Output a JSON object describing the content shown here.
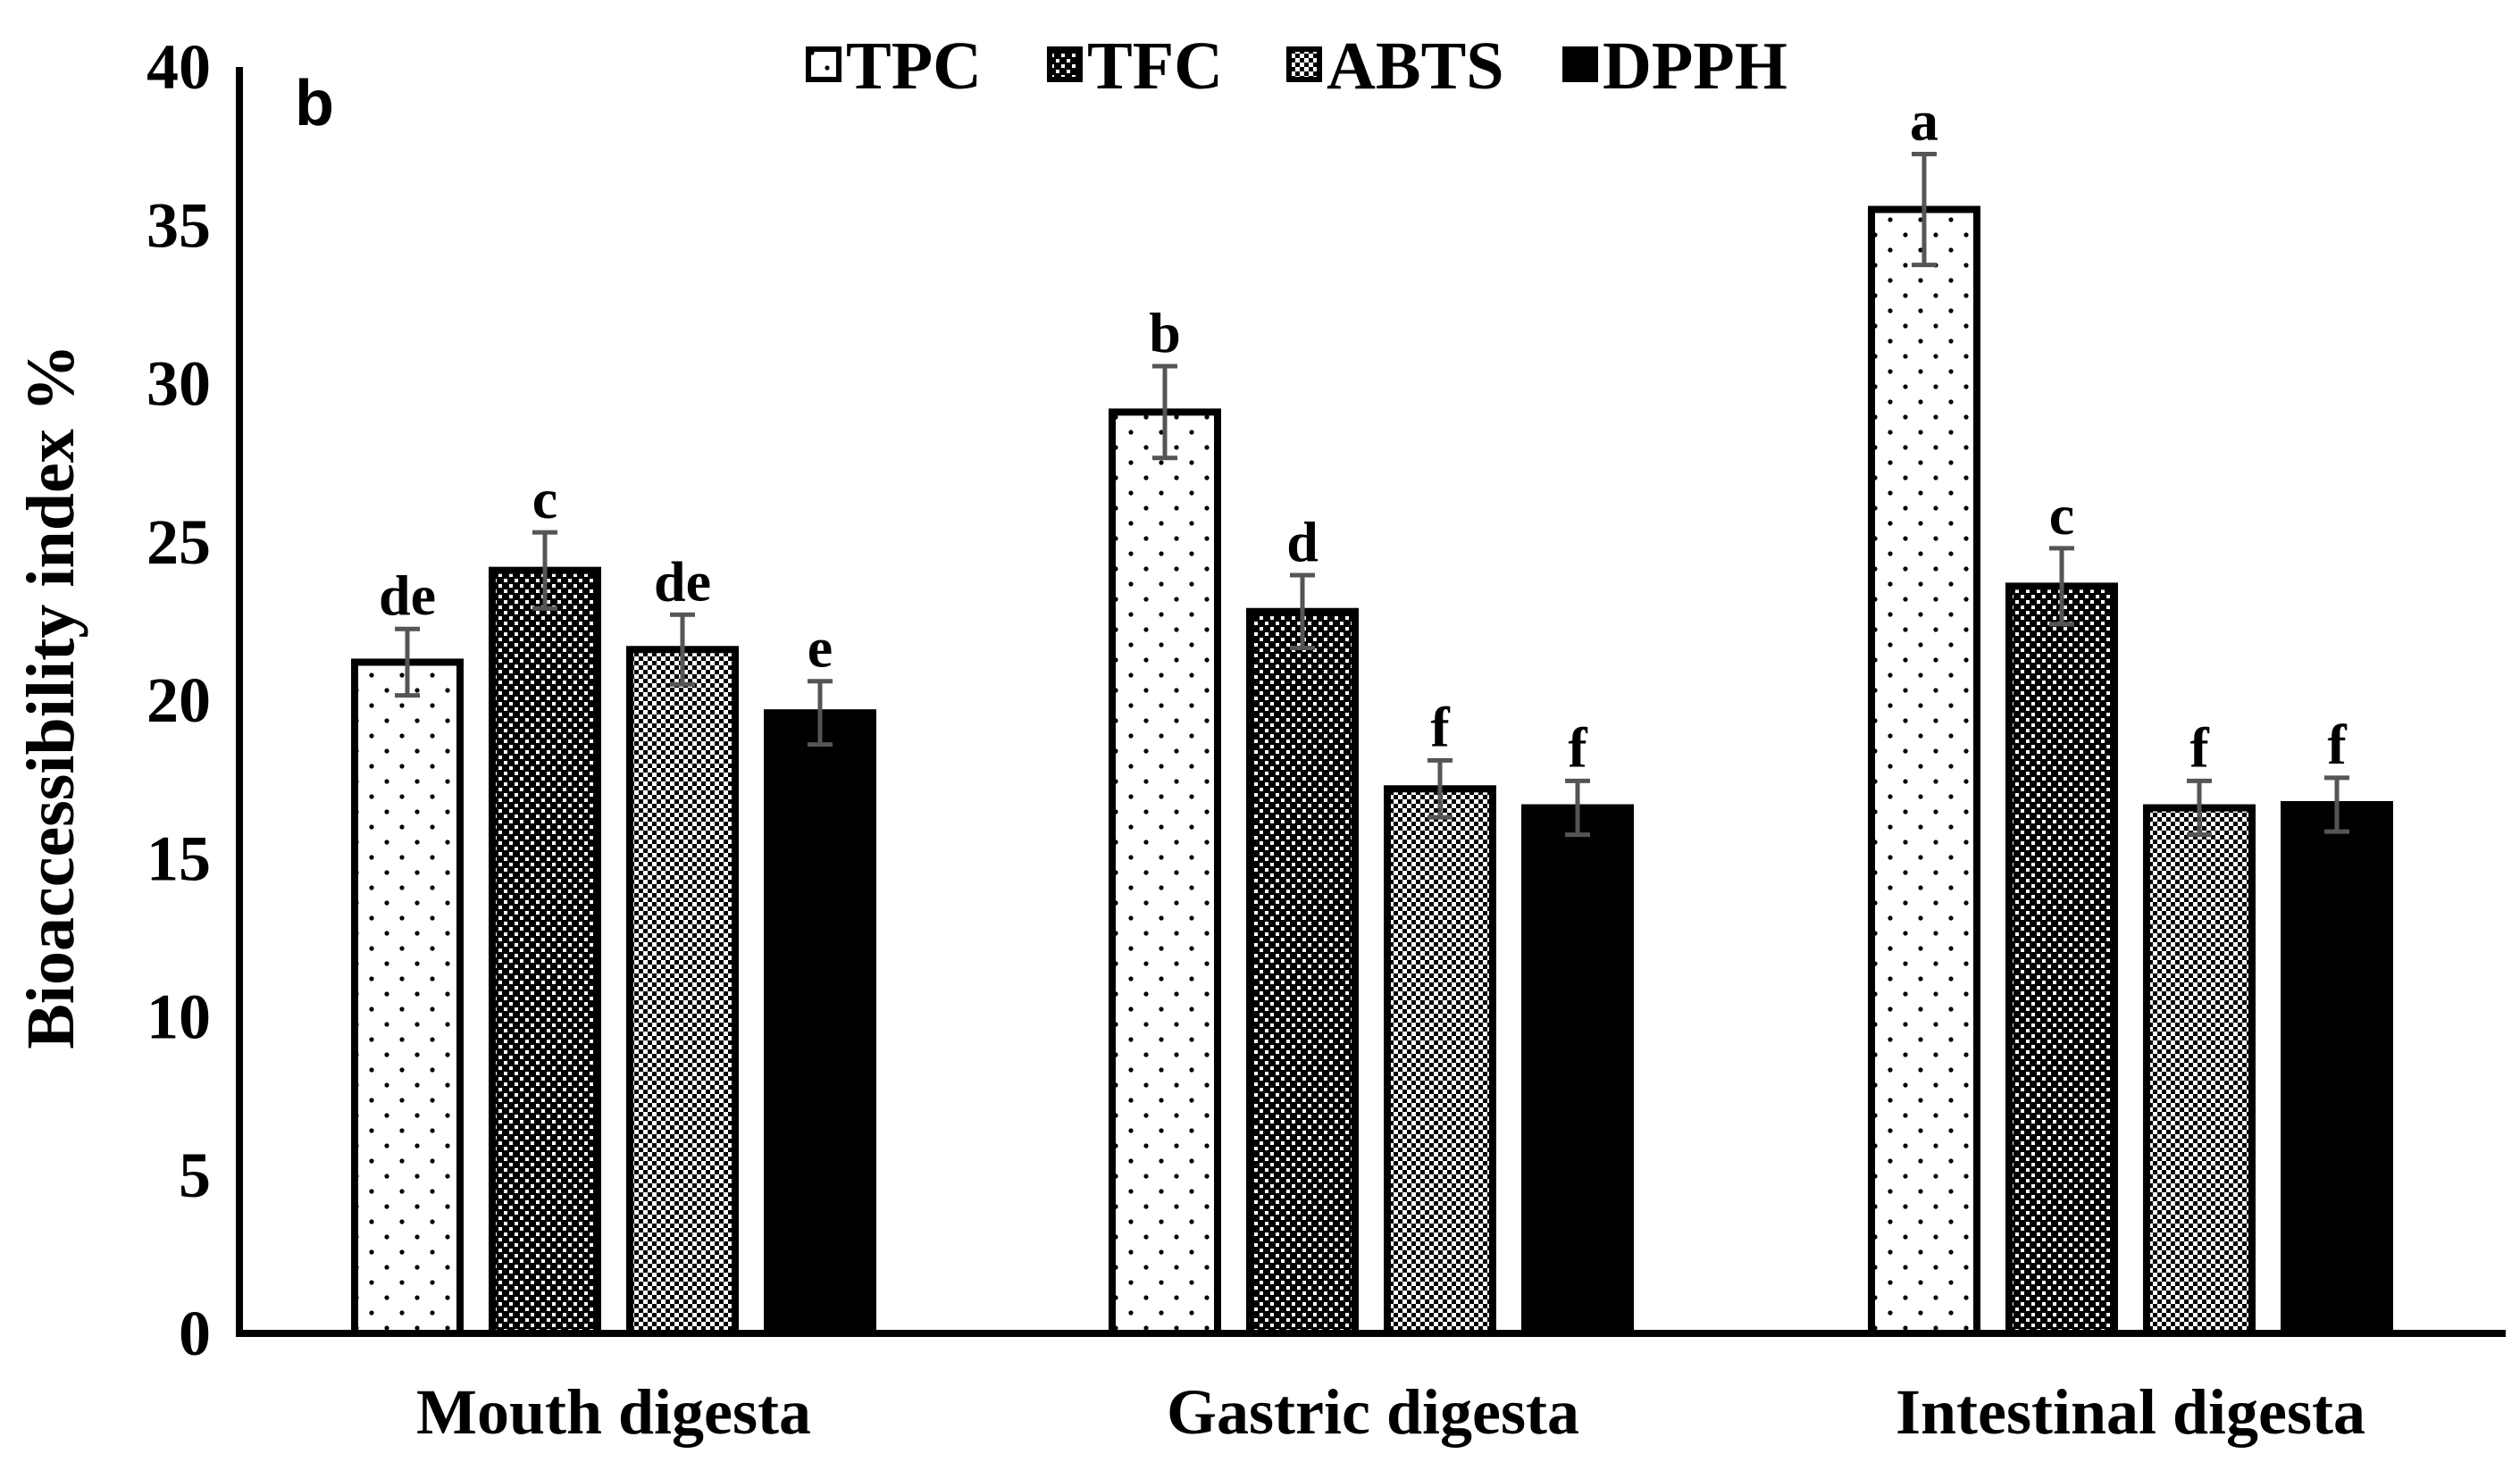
{
  "chart_data": {
    "type": "bar",
    "panel_label": "b",
    "title": "",
    "xlabel": "",
    "ylabel": "Bioaccessibility index %",
    "ylim": [
      0,
      40
    ],
    "yticks": [
      "0",
      "5",
      "10",
      "15",
      "20",
      "25",
      "30",
      "35",
      "40"
    ],
    "grid": false,
    "legend_position": "top",
    "categories": [
      "Mouth digesta",
      "Gastric digesta",
      "Intestinal digesta"
    ],
    "series": [
      {
        "name": "TPC",
        "pattern": "dots",
        "values": [
          21.2,
          29.1,
          35.5
        ],
        "errors": [
          1.05,
          1.45,
          1.75
        ],
        "labels": [
          "de",
          "b",
          "a"
        ]
      },
      {
        "name": "TFC",
        "pattern": "dense-check",
        "values": [
          24.1,
          22.8,
          23.6
        ],
        "errors": [
          1.2,
          1.15,
          1.2
        ],
        "labels": [
          "c",
          "d",
          "c"
        ]
      },
      {
        "name": "ABTS",
        "pattern": "fine-check",
        "values": [
          21.6,
          17.2,
          16.6
        ],
        "errors": [
          1.1,
          0.9,
          0.85
        ],
        "labels": [
          "de",
          "f",
          "f"
        ]
      },
      {
        "name": "DPPH",
        "pattern": "solid",
        "values": [
          19.6,
          16.6,
          16.7
        ],
        "errors": [
          1.0,
          0.85,
          0.85
        ],
        "labels": [
          "e",
          "f",
          "f"
        ]
      }
    ],
    "colors": {
      "outline": "#000000",
      "error_bar": "#555555",
      "solid_fill": "#000000"
    }
  }
}
